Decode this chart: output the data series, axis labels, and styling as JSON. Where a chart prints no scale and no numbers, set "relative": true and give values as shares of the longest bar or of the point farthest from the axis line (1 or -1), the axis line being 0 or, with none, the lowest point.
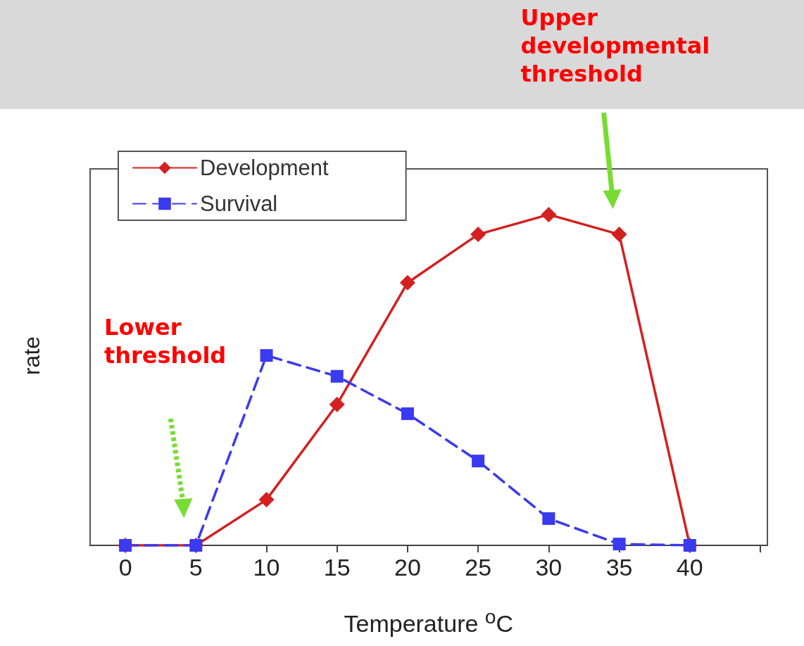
{
  "chart_data": {
    "type": "line",
    "xlabel": "Temperature $^{o}$C",
    "ylabel": "rate",
    "relative": true,
    "x": [
      0,
      5,
      10,
      15,
      20,
      25,
      30,
      35,
      40
    ],
    "xlim": [
      -2.5,
      45.5
    ],
    "xticks": [
      0,
      5,
      10,
      15,
      20,
      25,
      30,
      35,
      40,
      {
        "value": 45,
        "label": null
      }
    ],
    "series": [
      {
        "name": "Development",
        "color": "#d42020",
        "marker": "diamond",
        "line_style": "solid",
        "values": [
          0,
          0,
          0.138,
          0.426,
          0.794,
          0.94,
          1,
          0.94,
          0
        ]
      },
      {
        "name": "Survival",
        "color": "#3a3aef",
        "marker": "square",
        "line_style": "dashed",
        "values": [
          0,
          0,
          0.574,
          0.511,
          0.398,
          0.255,
          0.081,
          0.004,
          0
        ]
      }
    ],
    "annotations": [
      "Upper developmental threshold",
      "Lower threshold"
    ],
    "grid": false,
    "legend": "top left"
  }
}
